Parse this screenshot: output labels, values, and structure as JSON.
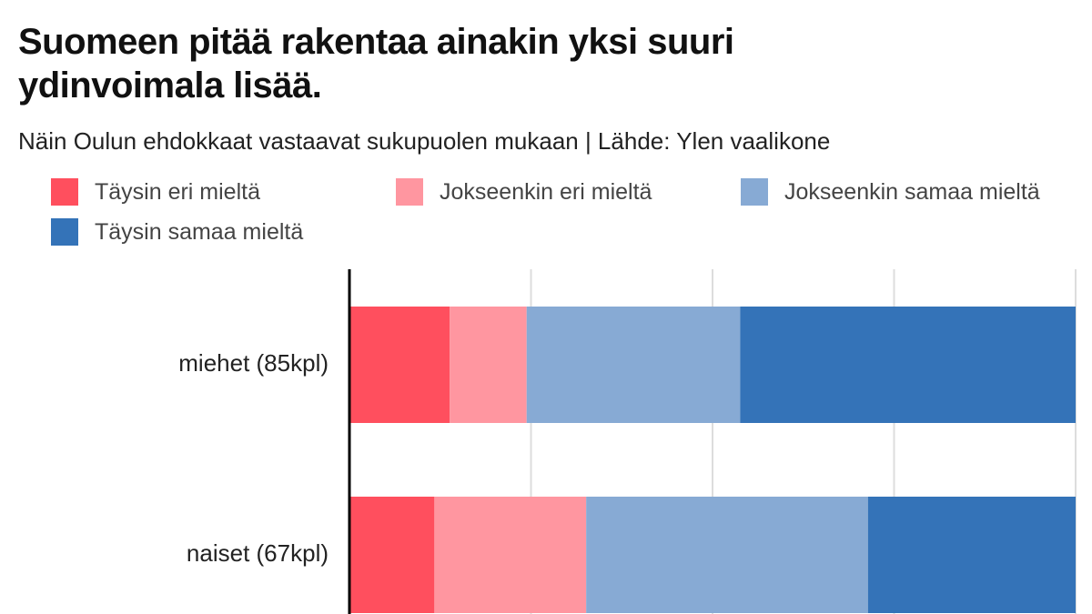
{
  "title": "Suomeen pitää rakentaa ainakin yksi suuri ydinvoimala lisää.",
  "subtitle": "Näin Oulun ehdokkaat vastaavat sukupuolen mukaan | Lähde: Ylen vaalikone",
  "chart_data": {
    "type": "bar",
    "orientation": "horizontal",
    "stacked": true,
    "title": "Suomeen pitää rakentaa ainakin yksi suuri ydinvoimala lisää.",
    "subtitle": "Näin Oulun ehdokkaat vastaavat sukupuolen mukaan | Lähde: Ylen vaalikone",
    "categories": [
      "miehet (85kpl)",
      "naiset (67kpl)"
    ],
    "series": [
      {
        "name": "Täysin eri mieltä",
        "color": "#ff4f5e",
        "values": [
          13.8,
          11.7
        ]
      },
      {
        "name": "Jokseenkin eri mieltä",
        "color": "#ff96a0",
        "values": [
          10.6,
          20.9
        ]
      },
      {
        "name": "Jokseenkin samaa mieltä",
        "color": "#87aad4",
        "values": [
          29.4,
          38.8
        ]
      },
      {
        "name": "Täysin samaa mieltä",
        "color": "#3473b8",
        "values": [
          46.2,
          28.6
        ]
      }
    ],
    "xlim": [
      0,
      100
    ],
    "grid": true,
    "legend_position": "top"
  }
}
